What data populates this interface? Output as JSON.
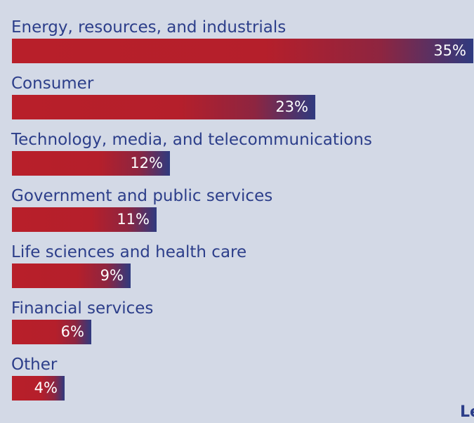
{
  "chart_data": {
    "type": "bar",
    "orientation": "horizontal",
    "categories": [
      "Energy, resources, and industrials",
      "Consumer",
      "Technology, media, and telecommunications",
      "Government and public services",
      "Life sciences and health care",
      "Financial services",
      "Other"
    ],
    "values": [
      35,
      23,
      12,
      11,
      9,
      6,
      4
    ],
    "value_labels": [
      "35%",
      "23%",
      "12%",
      "11%",
      "9%",
      "6%",
      "4%"
    ],
    "xlim": [
      0,
      35
    ],
    "grid": false,
    "legend": "none",
    "colors": {
      "bar_start": "#b81f2a",
      "bar_end": "#2f3a7f",
      "label_text": "#2c3e8a",
      "value_text": "#ffffff",
      "background": "#d3d9e6"
    }
  },
  "footer": {
    "partial_text": "Le"
  }
}
